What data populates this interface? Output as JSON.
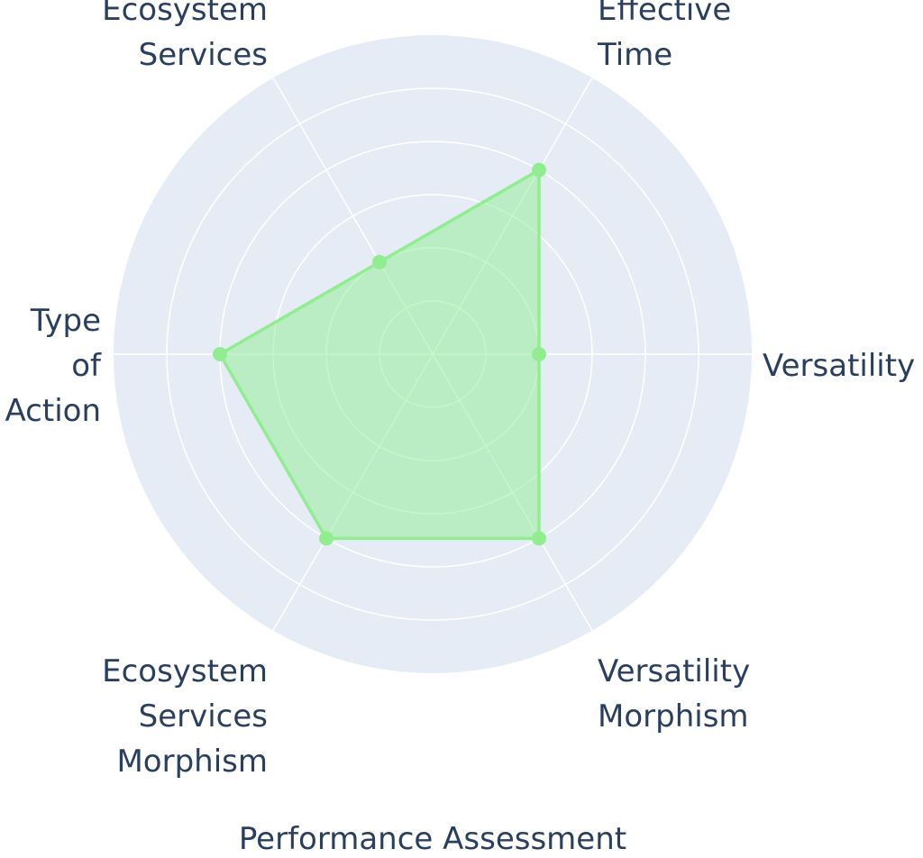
{
  "chart_data": {
    "type": "radar",
    "title": "Performance Assessment",
    "axes": [
      "Versatility",
      "Effective Time",
      "Ecosystem Services",
      "Type of Action",
      "Ecosystem Services Morphism",
      "Versatility Morphism"
    ],
    "axis_label_lines": [
      [
        "Versatility"
      ],
      [
        "Effective",
        "Time"
      ],
      [
        "Ecosystem",
        "Services"
      ],
      [
        "Type",
        "of",
        "Action"
      ],
      [
        "Ecosystem",
        "Services",
        "Morphism"
      ],
      [
        "Versatility",
        "Morphism"
      ]
    ],
    "series": [
      {
        "values": [
          2,
          4,
          2,
          4,
          4,
          4
        ]
      }
    ],
    "radial_range": [
      0,
      6
    ],
    "radial_grid_step": 1,
    "grid": true,
    "tick_labels_shown": false,
    "colors": {
      "polar_background": "#e5ecf6",
      "grid": "#ffffff",
      "series_line": "#90ee90",
      "series_fill": "rgba(144,238,144,0.5)",
      "label_text": "#2a3f5f"
    }
  }
}
